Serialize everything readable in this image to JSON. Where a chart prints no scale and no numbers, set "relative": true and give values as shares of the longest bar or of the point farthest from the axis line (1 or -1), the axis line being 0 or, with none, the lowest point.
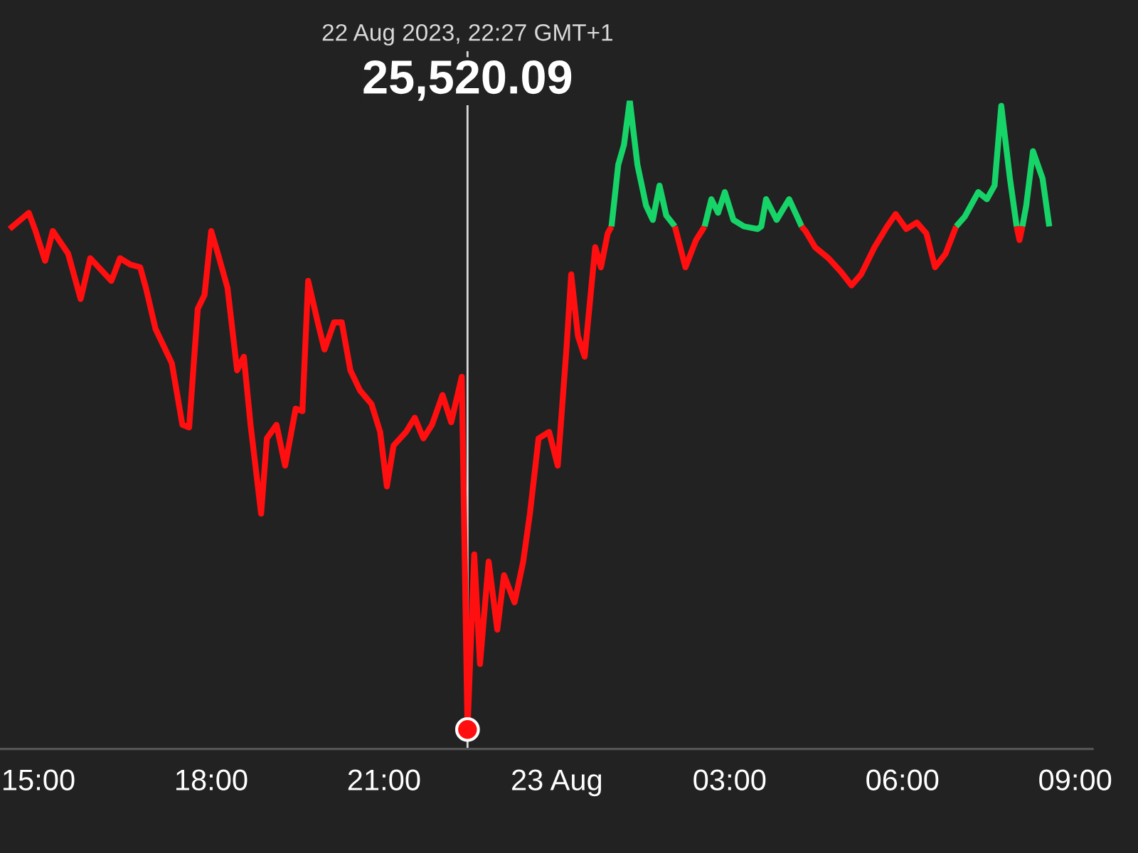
{
  "chart_data": {
    "type": "line",
    "relative": true,
    "xlim": [
      "2023-08-22T14:20",
      "2023-08-23T09:18"
    ],
    "xticks": [
      {
        "value": "2023-08-22T15:00",
        "label": "15:00"
      },
      {
        "value": "2023-08-22T18:00",
        "label": "18:00"
      },
      {
        "value": "2023-08-22T21:00",
        "label": "21:00"
      },
      {
        "value": "2023-08-23T00:00",
        "label": "23 Aug"
      },
      {
        "value": "2023-08-23T03:00",
        "label": "03:00"
      },
      {
        "value": "2023-08-23T06:00",
        "label": "06:00"
      },
      {
        "value": "2023-08-23T09:00",
        "label": "09:00"
      }
    ],
    "series": [
      {
        "color": "#ff0f0f",
        "x": [
          "2023-08-22T14:30",
          "2023-08-22T14:50",
          "2023-08-22T14:57",
          "2023-08-22T15:07",
          "2023-08-22T15:15",
          "2023-08-22T15:31",
          "2023-08-22T15:44",
          "2023-08-22T15:54",
          "2023-08-22T16:16",
          "2023-08-22T16:25",
          "2023-08-22T16:36",
          "2023-08-22T16:46",
          "2023-08-22T16:52",
          "2023-08-22T17:02",
          "2023-08-22T17:19",
          "2023-08-22T17:30",
          "2023-08-22T17:37",
          "2023-08-22T17:46",
          "2023-08-22T17:53",
          "2023-08-22T18:00",
          "2023-08-22T18:07",
          "2023-08-22T18:17",
          "2023-08-22T18:27",
          "2023-08-22T18:34",
          "2023-08-22T18:41",
          "2023-08-22T18:52",
          "2023-08-22T18:58",
          "2023-08-22T19:08",
          "2023-08-22T19:17",
          "2023-08-22T19:28",
          "2023-08-22T19:35",
          "2023-08-22T19:41",
          "2023-08-22T19:51",
          "2023-08-22T19:58",
          "2023-08-22T20:08",
          "2023-08-22T20:16",
          "2023-08-22T20:25",
          "2023-08-22T20:35",
          "2023-08-22T20:47",
          "2023-08-22T20:56",
          "2023-08-22T21:03",
          "2023-08-22T21:10",
          "2023-08-22T21:23",
          "2023-08-22T21:32",
          "2023-08-22T21:41",
          "2023-08-22T21:50",
          "2023-08-22T22:01",
          "2023-08-22T22:10",
          "2023-08-22T22:21",
          "2023-08-22T22:27",
          "2023-08-22T22:34",
          "2023-08-22T22:40",
          "2023-08-22T22:49",
          "2023-08-22T22:58",
          "2023-08-22T23:05",
          "2023-08-22T23:16",
          "2023-08-22T23:25",
          "2023-08-22T23:32",
          "2023-08-22T23:41",
          "2023-08-22T23:52",
          "2023-08-23T00:01",
          "2023-08-23T00:10",
          "2023-08-23T00:15",
          "2023-08-23T00:22",
          "2023-08-23T00:29",
          "2023-08-23T00:40",
          "2023-08-23T00:46",
          "2023-08-23T00:53",
          "2023-08-23T00:57"
        ],
        "values": [
          0.802,
          0.827,
          0.799,
          0.753,
          0.799,
          0.764,
          0.694,
          0.757,
          0.722,
          0.757,
          0.747,
          0.743,
          0.711,
          0.648,
          0.595,
          0.5,
          0.496,
          0.679,
          0.7,
          0.799,
          0.764,
          0.711,
          0.584,
          0.605,
          0.5,
          0.363,
          0.479,
          0.5,
          0.437,
          0.525,
          0.521,
          0.722,
          0.658,
          0.616,
          0.658,
          0.658,
          0.584,
          0.553,
          0.532,
          0.489,
          0.405,
          0.468,
          0.489,
          0.511,
          0.479,
          0.5,
          0.546,
          0.504,
          0.574,
          0.03,
          0.3,
          0.131,
          0.289,
          0.184,
          0.268,
          0.226,
          0.289,
          0.363,
          0.479,
          0.489,
          0.437,
          0.616,
          0.732,
          0.637,
          0.605,
          0.774,
          0.743,
          0.795,
          0.806
        ]
      },
      {
        "color": "#17d468",
        "x": [
          "2023-08-23T00:57",
          "2023-08-23T01:04",
          "2023-08-23T01:10",
          "2023-08-23T01:16",
          "2023-08-23T01:24",
          "2023-08-23T01:33",
          "2023-08-23T01:40",
          "2023-08-23T01:47",
          "2023-08-23T01:54",
          "2023-08-23T02:03"
        ],
        "values": [
          0.806,
          0.901,
          0.932,
          1.0,
          0.901,
          0.838,
          0.816,
          0.869,
          0.823,
          0.806
        ]
      },
      {
        "color": "#ff0f0f",
        "x": [
          "2023-08-23T02:03",
          "2023-08-23T02:14",
          "2023-08-23T02:25",
          "2023-08-23T02:34"
        ],
        "values": [
          0.806,
          0.743,
          0.785,
          0.806
        ]
      },
      {
        "color": "#17d468",
        "x": [
          "2023-08-23T02:34",
          "2023-08-23T02:41",
          "2023-08-23T02:48",
          "2023-08-23T02:55",
          "2023-08-23T03:04",
          "2023-08-23T03:15",
          "2023-08-23T03:29",
          "2023-08-23T03:33",
          "2023-08-23T03:38",
          "2023-08-23T03:49",
          "2023-08-23T04:02",
          "2023-08-23T04:12",
          "2023-08-23T04:15"
        ],
        "values": [
          0.806,
          0.848,
          0.827,
          0.859,
          0.816,
          0.806,
          0.802,
          0.806,
          0.848,
          0.816,
          0.848,
          0.816,
          0.806
        ]
      },
      {
        "color": "#ff0f0f",
        "x": [
          "2023-08-23T04:15",
          "2023-08-23T04:19",
          "2023-08-23T04:29",
          "2023-08-23T04:43",
          "2023-08-23T04:56",
          "2023-08-23T05:07",
          "2023-08-23T05:17",
          "2023-08-23T05:31",
          "2023-08-23T05:44",
          "2023-08-23T05:53",
          "2023-08-23T06:04",
          "2023-08-23T06:15",
          "2023-08-23T06:25",
          "2023-08-23T06:34",
          "2023-08-23T06:45",
          "2023-08-23T06:56"
        ],
        "values": [
          0.806,
          0.799,
          0.774,
          0.757,
          0.736,
          0.715,
          0.732,
          0.774,
          0.806,
          0.825,
          0.802,
          0.812,
          0.795,
          0.743,
          0.764,
          0.806
        ]
      },
      {
        "color": "#17d468",
        "x": [
          "2023-08-23T06:56",
          "2023-08-23T07:05",
          "2023-08-23T07:19",
          "2023-08-23T07:28",
          "2023-08-23T07:36",
          "2023-08-23T07:43",
          "2023-08-23T07:52",
          "2023-08-23T07:59"
        ],
        "values": [
          0.806,
          0.821,
          0.859,
          0.848,
          0.869,
          0.992,
          0.88,
          0.806
        ]
      },
      {
        "color": "#ff0f0f",
        "x": [
          "2023-08-23T07:59",
          "2023-08-23T08:02",
          "2023-08-23T08:05"
        ],
        "values": [
          0.806,
          0.785,
          0.806
        ]
      },
      {
        "color": "#17d468",
        "x": [
          "2023-08-23T08:05",
          "2023-08-23T08:09",
          "2023-08-23T08:16",
          "2023-08-23T08:26",
          "2023-08-23T08:33"
        ],
        "values": [
          0.806,
          0.838,
          0.922,
          0.88,
          0.806
        ]
      }
    ],
    "ref_lines": [
      {
        "axis": "x",
        "value": "2023-08-22T22:27",
        "label": "22 Aug 2023, 22:27 GMT+1",
        "color": "#d9d9d9"
      }
    ],
    "annotations": [
      "25,520.09"
    ]
  }
}
